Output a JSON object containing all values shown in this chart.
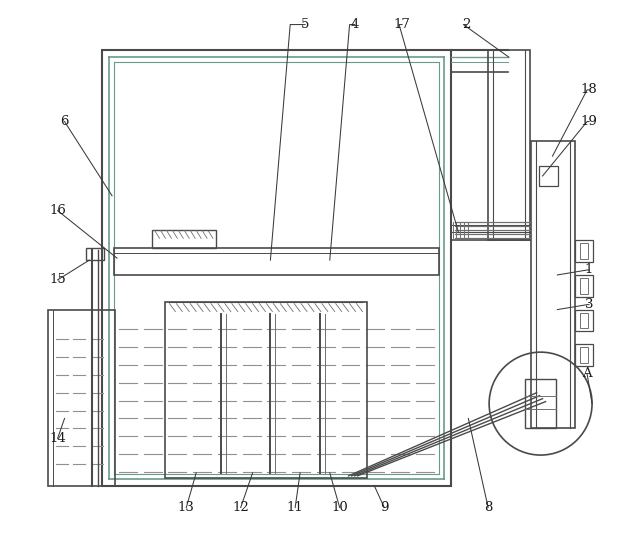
{
  "bg_color": "#ffffff",
  "lc_main": "#4a4a4a",
  "lc_inner": "#6a9a8a",
  "lc_mid": "#707070",
  "lc_dash": "#909090",
  "figure_size": [
    6.19,
    5.39
  ],
  "dpi": 100
}
